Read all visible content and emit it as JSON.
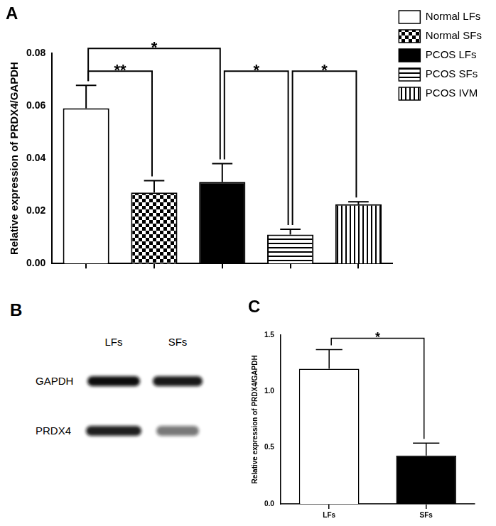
{
  "chart_data": [
    {
      "type": "bar",
      "title": "A",
      "y_label": "Relative expression of PRDX4/GAPDH",
      "categories": [
        "Normal LFs",
        "Normal SFs",
        "PCOS LFs",
        "PCOS SFs",
        "PCOS IVM"
      ],
      "values": [
        0.059,
        0.027,
        0.031,
        0.011,
        0.0225
      ],
      "errors": [
        0.0087,
        0.0045,
        0.007,
        0.002,
        0.001
      ],
      "colors": [
        "#ffffff",
        "#ffffff",
        "#000000",
        "#ffffff",
        "#ffffff"
      ],
      "ylim": [
        0,
        0.08
      ],
      "yticks": [
        {
          "value": 0,
          "label": "0.00"
        },
        {
          "value": 0.02,
          "label": "0.02"
        },
        {
          "value": 0.04,
          "label": "0.04"
        },
        {
          "value": 0.06,
          "label": "0.06"
        },
        {
          "value": 0.08,
          "label": "0.08"
        }
      ],
      "tick_labels": "y",
      "legend": "right",
      "grid": false,
      "annotations": [
        {
          "from": "Normal LFs",
          "to": "Normal SFs",
          "text": "**"
        },
        {
          "from": "Normal LFs",
          "to": "PCOS LFs",
          "text": "*"
        },
        {
          "from": "PCOS LFs",
          "to": "PCOS SFs",
          "text": "*"
        },
        {
          "from": "PCOS SFs",
          "to": "PCOS IVM",
          "text": "*"
        }
      ]
    },
    {
      "type": "bar",
      "title": "C",
      "y_label": "Relative expression of PRDX4/GAPDH",
      "categories": [
        "LFs",
        "SFs"
      ],
      "values": [
        1.2,
        0.43
      ],
      "errors": [
        0.17,
        0.11
      ],
      "colors": [
        "#ffffff",
        "#000000"
      ],
      "ylim": [
        0,
        1.5
      ],
      "yticks": [
        {
          "value": 0,
          "label": "0.0"
        },
        {
          "value": 0.5,
          "label": "0.5"
        },
        {
          "value": 1,
          "label": "1.0"
        },
        {
          "value": 1.5,
          "label": "1.5"
        }
      ],
      "grid": false,
      "annotations": [
        {
          "from": "LFs",
          "to": "SFs",
          "text": "*"
        }
      ]
    }
  ],
  "blot": {
    "title": "B",
    "lanes": [
      "LFs",
      "SFs"
    ],
    "proteins": [
      "GAPDH",
      "PRDX4"
    ]
  }
}
